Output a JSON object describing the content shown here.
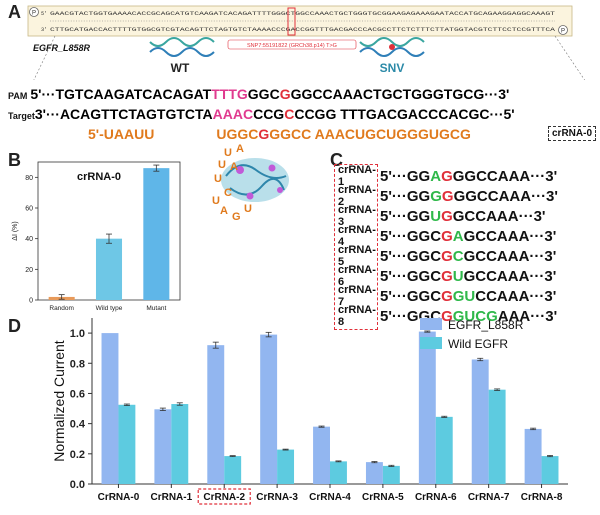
{
  "panels": {
    "a": "A",
    "b": "B",
    "c": "C",
    "d": "D"
  },
  "panel_a": {
    "strand_top_prefix": "5'",
    "strand_top_seq": "GAACGTACTGGTGAAAACACCGCAGCATGTCAAGATCACAGATTTTGGGCTGGCCAAACTGCTGGGTGCGGAAGAGAAAGAATACCATGCAGAAGGAGGCAAAGT",
    "strand_bottom_prefix": "3'",
    "strand_bottom_seq": "CTTGCATGACCACTTTTGTGGCGTCGTACAGTTCTAGTGTCTAAAACCCGACCGGTTTGACGACCCACGCCTTCTCTTTCTTATGGTACGTCTTCCTCCGTTTCA",
    "gene_label": "EGFR_L858R",
    "wt_label": "WT",
    "snv_label": "SNV",
    "snv_note": "SNP7:55191822 (GRCh38.p14) T>G",
    "pam_label": "PAM",
    "pam_seq_a": "5'···TGTCAAGATCACAGAT",
    "pam_seq_pam": "TTTG",
    "pam_seq_b": "GGC",
    "pam_seq_mut": "G",
    "pam_seq_c": "GGCCAAACTGCTGGGTGCG···3'",
    "target_label": "Target",
    "target_seq_a": "3'···ACAGTTCTAGTGTCTA",
    "target_seq_pam": "AAAC",
    "target_seq_b": "CCG",
    "target_seq_mut": "C",
    "target_seq_c": "CCGG TTTGACGACCCACGC···5'",
    "crrna_prefix": "5'-UAAUU",
    "crrna_a": "UGGC",
    "crrna_mut": "G",
    "crrna_b": "GGCC AAACUGCUGGGUGCG",
    "crrna_box": "crRNA-0",
    "hairpin_letters": [
      "U",
      "A",
      "U",
      "A",
      "U",
      "C",
      "U",
      "A",
      "G",
      "U"
    ]
  },
  "panel_c": {
    "rows": [
      {
        "name": "crRNA-1",
        "seq": [
          [
            "5'···GG",
            ""
          ],
          [
            "A",
            "green"
          ],
          [
            "G",
            "red"
          ],
          [
            "GGCCAAA···3'",
            ""
          ]
        ]
      },
      {
        "name": "crRNA-2",
        "seq": [
          [
            "5'···GG",
            ""
          ],
          [
            "G",
            "green"
          ],
          [
            "G",
            "red"
          ],
          [
            "GGCCAAA···3'",
            ""
          ]
        ]
      },
      {
        "name": "crRNA-3",
        "seq": [
          [
            "5'···GG",
            ""
          ],
          [
            "U",
            "green"
          ],
          [
            "G",
            "red"
          ],
          [
            "GCCAAA···3'",
            ""
          ]
        ]
      },
      {
        "name": "crRNA-4",
        "seq": [
          [
            "5'···GGC",
            ""
          ],
          [
            "G",
            "red"
          ],
          [
            "A",
            "green"
          ],
          [
            "GCCAAA···3'",
            ""
          ]
        ]
      },
      {
        "name": "crRNA-5",
        "seq": [
          [
            "5'···GGC",
            ""
          ],
          [
            "G",
            "red"
          ],
          [
            "C",
            "green"
          ],
          [
            "GCCAAA···3'",
            ""
          ]
        ]
      },
      {
        "name": "crRNA-6",
        "seq": [
          [
            "5'···GGC",
            ""
          ],
          [
            "G",
            "red"
          ],
          [
            "U",
            "green"
          ],
          [
            "GCCAAA···3'",
            ""
          ]
        ]
      },
      {
        "name": "crRNA-7",
        "seq": [
          [
            "5'···GGC",
            ""
          ],
          [
            "G",
            "red"
          ],
          [
            "GU",
            "green"
          ],
          [
            "CCAAA···3'",
            ""
          ]
        ]
      },
      {
        "name": "crRNA-8",
        "seq": [
          [
            "5'···GGC",
            ""
          ],
          [
            "G",
            "red"
          ],
          [
            "GUC",
            "green"
          ],
          [
            "G",
            "green"
          ],
          [
            "AAA···3'",
            ""
          ]
        ]
      }
    ]
  },
  "chart_data": [
    {
      "type": "bar",
      "panel": "B",
      "title": "crRNA-0",
      "categories": [
        "Random",
        "Wild type",
        "Mutant"
      ],
      "values": [
        2,
        40,
        86
      ],
      "errors": [
        1.5,
        3,
        2
      ],
      "colors": [
        "#e89a5a",
        "#6ec7e6",
        "#5fb6e8"
      ],
      "ylabel": "ΔI (%)",
      "ylim": [
        0,
        90
      ],
      "yticks": [
        0,
        20,
        40,
        60,
        80
      ]
    },
    {
      "type": "bar",
      "panel": "D",
      "categories": [
        "CrRNA-0",
        "CrRNA-1",
        "CrRNA-2",
        "CrRNA-3",
        "CrRNA-4",
        "CrRNA-5",
        "CrRNA-6",
        "CrRNA-7",
        "CrRNA-8"
      ],
      "highlight_category": "CrRNA-2",
      "series": [
        {
          "name": "EGFR_L858R",
          "color": "#92b6f0",
          "values": [
            1.0,
            0.495,
            0.92,
            0.99,
            0.38,
            0.145,
            1.01,
            0.825,
            0.365
          ],
          "errors": [
            0,
            0.008,
            0.02,
            0.015,
            0.004,
            0.004,
            0.004,
            0.008,
            0.005
          ]
        },
        {
          "name": "Wild EGFR",
          "color": "#5dcbe0",
          "values": [
            0.525,
            0.53,
            0.185,
            0.228,
            0.15,
            0.12,
            0.445,
            0.625,
            0.185
          ],
          "errors": [
            0.005,
            0.008,
            0.003,
            0.003,
            0.003,
            0.004,
            0.004,
            0.005,
            0.004
          ]
        }
      ],
      "ylabel": "Normalized Current",
      "ylim": [
        0,
        1.1
      ],
      "yticks": [
        0.0,
        0.2,
        0.4,
        0.6,
        0.8,
        1.0
      ]
    }
  ]
}
